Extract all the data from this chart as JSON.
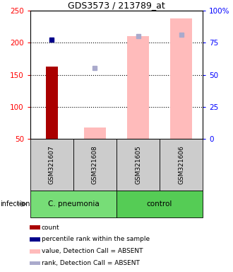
{
  "title": "GDS3573 / 213789_at",
  "samples": [
    "GSM321607",
    "GSM321608",
    "GSM321605",
    "GSM321606"
  ],
  "groups": [
    "C. pneumonia",
    "C. pneumonia",
    "control",
    "control"
  ],
  "ylim_left": [
    50,
    250
  ],
  "ylim_right": [
    0,
    100
  ],
  "yticks_left": [
    50,
    100,
    150,
    200,
    250
  ],
  "yticks_right": [
    0,
    25,
    50,
    75,
    100
  ],
  "ytick_labels_right": [
    "0",
    "25",
    "50",
    "75",
    "100%"
  ],
  "red_bars": [
    163,
    null,
    null,
    null
  ],
  "pink_bars": [
    null,
    68,
    211,
    238
  ],
  "blue_squares": [
    205,
    null,
    null,
    null
  ],
  "light_blue_squares": [
    null,
    161,
    211,
    213
  ],
  "red_bar_color": "#aa0000",
  "pink_bar_color": "#ffbbbb",
  "blue_square_color": "#00008b",
  "light_blue_color": "#aaaacc",
  "group_labels": [
    "C. pneumonia",
    "control"
  ],
  "group_label_colors": [
    "#77dd77",
    "#55cc55"
  ],
  "gray_cell_color": "#cccccc",
  "infection_label": "infection",
  "legend_items": [
    {
      "color": "#aa0000",
      "label": "count"
    },
    {
      "color": "#00008b",
      "label": "percentile rank within the sample"
    },
    {
      "color": "#ffbbbb",
      "label": "value, Detection Call = ABSENT"
    },
    {
      "color": "#aaaacc",
      "label": "rank, Detection Call = ABSENT"
    }
  ],
  "gridline_yticks": [
    100,
    150,
    200
  ],
  "bar_width": 0.5
}
